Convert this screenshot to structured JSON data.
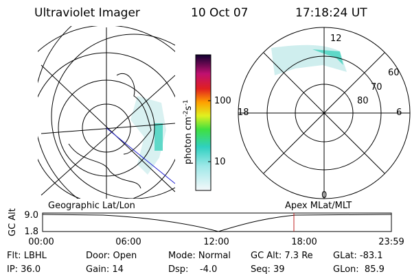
{
  "header": {
    "instrument": "Ultraviolet Imager",
    "date": "10 Oct 07",
    "time": "17:18:24 UT"
  },
  "colorbar": {
    "label": {
      "base": "photon cm",
      "exp1": "-2",
      "unit2": "s",
      "exp2": "-1"
    },
    "ticks": [
      "100",
      "10"
    ]
  },
  "polar_plot": {
    "mlt_labels": [
      "12",
      "6",
      "0",
      "18"
    ],
    "mlat_labels": [
      "60",
      "70",
      "80"
    ]
  },
  "altitude_plot": {
    "axis_label": "GC Alt",
    "left_title": "Geographic Lat/Lon",
    "right_title": "Apex MLat/MLT",
    "yticks": [
      "9.0",
      "1.8"
    ],
    "xticks": [
      "00:00",
      "06:00",
      "12:00",
      "18:00",
      "23:59"
    ]
  },
  "footer": {
    "rows": [
      [
        "Flt: LBHL",
        "Door: Open",
        "Mode: Normal",
        "GC Alt: 7.3 Re",
        "GLat: -83.1"
      ],
      [
        "IP: 36.0",
        "Gain: 14",
        "Dsp:    -4.0",
        "Seq: 39",
        "GLon:  85.9"
      ]
    ]
  }
}
